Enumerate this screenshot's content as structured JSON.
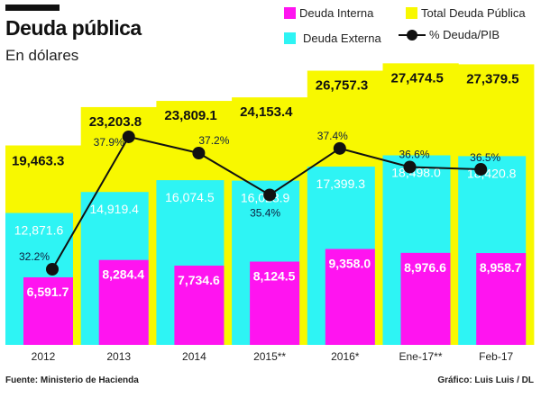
{
  "title": "Deuda pública",
  "subtitle": "En dólares",
  "source": "Fuente: Ministerio de Hacienda",
  "credit": "Gráfico: Luis Luis / DL",
  "colors": {
    "interna": "#ff14f0",
    "externa": "#2ef4f4",
    "total": "#f8f800",
    "line": "#111111",
    "pct_text": "#0d2040"
  },
  "chart_data": {
    "type": "bar",
    "categories": [
      "2012",
      "2013",
      "2014",
      "2015**",
      "2016*",
      "Ene-17**",
      "Feb-17"
    ],
    "series": [
      {
        "name": "Total Deuda Pública",
        "values": [
          19463.3,
          23203.8,
          23809.1,
          24153.4,
          26757.3,
          27474.5,
          27379.5
        ],
        "labels": [
          "19,463.3",
          "23,203.8",
          "23,809.1",
          "24,153.4",
          "26,757.3",
          "27,474.5",
          "27,379.5"
        ]
      },
      {
        "name": "Deuda Externa",
        "values": [
          12871.6,
          14919.4,
          16074.5,
          16028.9,
          17399.3,
          18498.0,
          18420.8
        ],
        "labels": [
          "12,871.6",
          "14,919.4",
          "16,074.5",
          "16,028.9",
          "17,399.3",
          "18,498.0",
          "18,420.8"
        ]
      },
      {
        "name": "Deuda Interna",
        "values": [
          6591.7,
          8284.4,
          7734.6,
          8124.5,
          9358.0,
          8976.6,
          8958.7
        ],
        "labels": [
          "6,591.7",
          "8,284.4",
          "7,734.6",
          "8,124.5",
          "9,358.0",
          "8,976.6",
          "8,958.7"
        ]
      },
      {
        "name": "% Deuda/PIB",
        "type": "line",
        "values": [
          32.2,
          37.9,
          37.2,
          35.4,
          37.4,
          36.6,
          36.5
        ],
        "labels": [
          "32.2%",
          "37.9%",
          "37.2%",
          "35.4%",
          "37.4%",
          "36.6%",
          "36.5%"
        ]
      }
    ],
    "legend": {
      "interna": "Deuda Interna",
      "total": "Total Deuda Pública",
      "externa": "Deuda Externa",
      "pct": "% Deuda/PIB"
    },
    "legend_position": "top-right",
    "grid": false
  }
}
